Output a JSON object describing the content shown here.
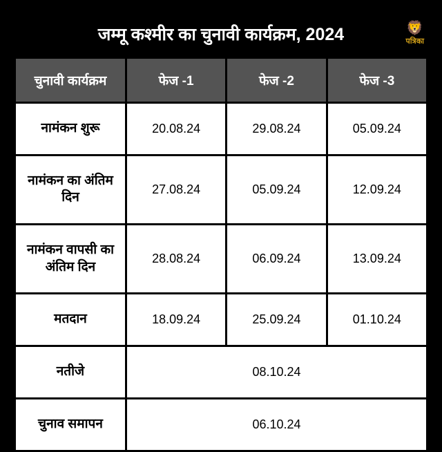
{
  "title": "जम्मू कश्मीर का चुनावी कार्यक्रम, 2024",
  "logo": {
    "icon": "🦁",
    "text": "पत्रिका"
  },
  "table": {
    "headers": {
      "label": "चुनावी कार्यक्रम",
      "phase1": "फेज -1",
      "phase2": "फेज -2",
      "phase3": "फेज -3"
    },
    "rows": [
      {
        "label": "नामंकन शुरू",
        "p1": "20.08.24",
        "p2": "29.08.24",
        "p3": "05.09.24"
      },
      {
        "label": "नामंकन का अंतिम दिन",
        "p1": "27.08.24",
        "p2": "05.09.24",
        "p3": "12.09.24"
      },
      {
        "label": "नामंकन वापसी का अंतिम दिन",
        "p1": "28.08.24",
        "p2": "06.09.24",
        "p3": "13.09.24"
      },
      {
        "label": "मतदान",
        "p1": "18.09.24",
        "p2": "25.09.24",
        "p3": "01.10.24"
      }
    ],
    "mergedRows": [
      {
        "label": "नतीजे",
        "value": "08.10.24"
      },
      {
        "label": "चुनाव समापन",
        "value": "06.10.24"
      }
    ]
  },
  "styling": {
    "background_color": "#000000",
    "header_bg": "#545454",
    "header_text": "#ffffff",
    "cell_bg": "#ffffff",
    "cell_text": "#000000",
    "logo_color": "#d4a219",
    "title_fontsize": 25,
    "header_fontsize": 19,
    "cell_fontsize": 18,
    "border_spacing": 3
  }
}
